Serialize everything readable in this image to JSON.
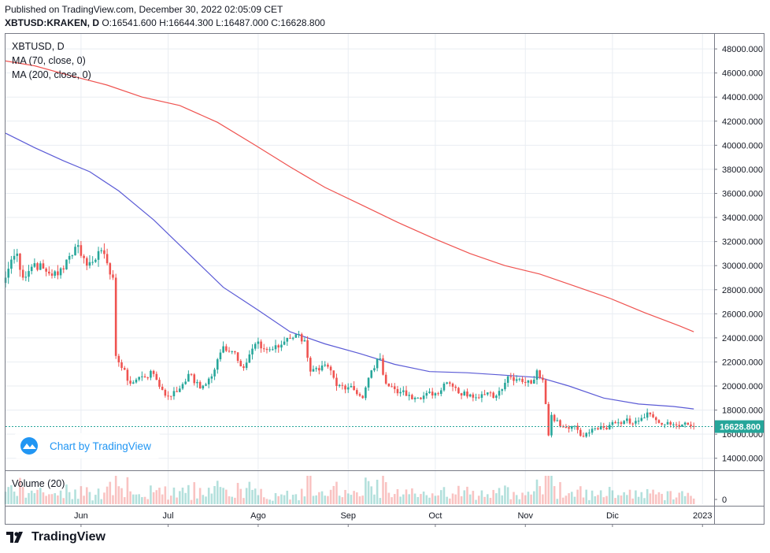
{
  "header": {
    "published": "Published on TradingView.com, December 30, 2022 02:05:09 CET",
    "symbol": "XBTUSD:KRAKEN, D",
    "ohlc": "O:16541.600 H:16644.300 L:16487.000 C:16628.800"
  },
  "legend": {
    "symbol": "XBTUSD, D",
    "ma70": "MA (70, close, 0)",
    "ma200": "MA (200, close, 0)",
    "volume": "Volume (20)"
  },
  "watermark": "Chart by TradingView",
  "footer": {
    "brand": "TradingView"
  },
  "colors": {
    "up": "#26a69a",
    "down": "#ef5350",
    "ma70": "#5b5bd6",
    "ma200": "#ef5350",
    "last_price_line": "#26a69a",
    "grid": "#e9edf2",
    "watermark": "#2196f3"
  },
  "chart_data": {
    "type": "candlestick",
    "last_price_label": "16628.800",
    "y_axis": {
      "min": 14000,
      "max": 48000,
      "step": 2000,
      "labels": [
        "48000.000",
        "46000.000",
        "44000.000",
        "42000.000",
        "40000.000",
        "38000.000",
        "36000.000",
        "34000.000",
        "32000.000",
        "30000.000",
        "28000.000",
        "26000.000",
        "24000.000",
        "22000.000",
        "20000.000",
        "18000.000",
        "16000.000",
        "14000.000"
      ]
    },
    "volume_axis": {
      "labels": [
        "0"
      ]
    },
    "x_axis": {
      "start": "2022-05-06",
      "end": "2023-01-05",
      "ticks": [
        {
          "date": "2022-06-01",
          "label": "Jun"
        },
        {
          "date": "2022-07-01",
          "label": "Jul"
        },
        {
          "date": "2022-08-01",
          "label": "Ago"
        },
        {
          "date": "2022-09-01",
          "label": "Sep"
        },
        {
          "date": "2022-10-01",
          "label": "Oct"
        },
        {
          "date": "2022-11-01",
          "label": "Nov"
        },
        {
          "date": "2022-12-01",
          "label": "Dic"
        },
        {
          "date": "2023-01-01",
          "label": "2023"
        }
      ]
    },
    "anchors": [
      {
        "date": "2022-05-06",
        "close": 29000
      },
      {
        "date": "2022-05-08",
        "close": 30500
      },
      {
        "date": "2022-05-10",
        "close": 31000
      },
      {
        "date": "2022-05-12",
        "close": 29000
      },
      {
        "date": "2022-05-16",
        "close": 30200
      },
      {
        "date": "2022-05-20",
        "close": 29500
      },
      {
        "date": "2022-05-24",
        "close": 29200
      },
      {
        "date": "2022-05-27",
        "close": 30500
      },
      {
        "date": "2022-05-31",
        "close": 31700
      },
      {
        "date": "2022-06-03",
        "close": 30000
      },
      {
        "date": "2022-06-07",
        "close": 31200
      },
      {
        "date": "2022-06-10",
        "close": 30200
      },
      {
        "date": "2022-06-12",
        "close": 29000
      },
      {
        "date": "2022-06-13",
        "close": 22500
      },
      {
        "date": "2022-06-15",
        "close": 21500
      },
      {
        "date": "2022-06-18",
        "close": 20200
      },
      {
        "date": "2022-06-22",
        "close": 20800
      },
      {
        "date": "2022-06-26",
        "close": 21000
      },
      {
        "date": "2022-06-30",
        "close": 19200
      },
      {
        "date": "2022-07-04",
        "close": 19500
      },
      {
        "date": "2022-07-08",
        "close": 21000
      },
      {
        "date": "2022-07-12",
        "close": 19800
      },
      {
        "date": "2022-07-16",
        "close": 20800
      },
      {
        "date": "2022-07-20",
        "close": 23300
      },
      {
        "date": "2022-07-24",
        "close": 22800
      },
      {
        "date": "2022-07-27",
        "close": 21500
      },
      {
        "date": "2022-07-31",
        "close": 23500
      },
      {
        "date": "2022-08-04",
        "close": 23000
      },
      {
        "date": "2022-08-08",
        "close": 23200
      },
      {
        "date": "2022-08-11",
        "close": 24000
      },
      {
        "date": "2022-08-14",
        "close": 24300
      },
      {
        "date": "2022-08-17",
        "close": 23800
      },
      {
        "date": "2022-08-19",
        "close": 21200
      },
      {
        "date": "2022-08-22",
        "close": 21300
      },
      {
        "date": "2022-08-25",
        "close": 21600
      },
      {
        "date": "2022-08-28",
        "close": 20000
      },
      {
        "date": "2022-09-02",
        "close": 20000
      },
      {
        "date": "2022-09-06",
        "close": 19000
      },
      {
        "date": "2022-09-09",
        "close": 21300
      },
      {
        "date": "2022-09-12",
        "close": 22300
      },
      {
        "date": "2022-09-14",
        "close": 20200
      },
      {
        "date": "2022-09-19",
        "close": 19500
      },
      {
        "date": "2022-09-23",
        "close": 18900
      },
      {
        "date": "2022-09-27",
        "close": 19200
      },
      {
        "date": "2022-10-01",
        "close": 19400
      },
      {
        "date": "2022-10-05",
        "close": 20300
      },
      {
        "date": "2022-10-09",
        "close": 19400
      },
      {
        "date": "2022-10-13",
        "close": 19300
      },
      {
        "date": "2022-10-18",
        "close": 19300
      },
      {
        "date": "2022-10-22",
        "close": 19200
      },
      {
        "date": "2022-10-26",
        "close": 20800
      },
      {
        "date": "2022-10-30",
        "close": 20600
      },
      {
        "date": "2022-11-03",
        "close": 20200
      },
      {
        "date": "2022-11-05",
        "close": 21300
      },
      {
        "date": "2022-11-07",
        "close": 20500
      },
      {
        "date": "2022-11-08",
        "close": 18500
      },
      {
        "date": "2022-11-09",
        "close": 15900
      },
      {
        "date": "2022-11-10",
        "close": 17600
      },
      {
        "date": "2022-11-14",
        "close": 16600
      },
      {
        "date": "2022-11-18",
        "close": 16700
      },
      {
        "date": "2022-11-21",
        "close": 15800
      },
      {
        "date": "2022-11-25",
        "close": 16500
      },
      {
        "date": "2022-11-29",
        "close": 16400
      },
      {
        "date": "2022-12-01",
        "close": 17000
      },
      {
        "date": "2022-12-05",
        "close": 17100
      },
      {
        "date": "2022-12-09",
        "close": 17100
      },
      {
        "date": "2022-12-13",
        "close": 17800
      },
      {
        "date": "2022-12-15",
        "close": 17400
      },
      {
        "date": "2022-12-18",
        "close": 16800
      },
      {
        "date": "2022-12-21",
        "close": 16800
      },
      {
        "date": "2022-12-25",
        "close": 16800
      },
      {
        "date": "2022-12-29",
        "close": 16628.8
      }
    ],
    "series": [
      {
        "name": "MA (70, close, 0)",
        "points": [
          {
            "date": "2022-05-06",
            "value": 41000
          },
          {
            "date": "2022-05-16",
            "value": 39800
          },
          {
            "date": "2022-05-26",
            "value": 38700
          },
          {
            "date": "2022-06-04",
            "value": 37800
          },
          {
            "date": "2022-06-14",
            "value": 36200
          },
          {
            "date": "2022-06-26",
            "value": 33800
          },
          {
            "date": "2022-07-08",
            "value": 31000
          },
          {
            "date": "2022-07-20",
            "value": 28200
          },
          {
            "date": "2022-08-01",
            "value": 26300
          },
          {
            "date": "2022-08-12",
            "value": 24500
          },
          {
            "date": "2022-08-24",
            "value": 23500
          },
          {
            "date": "2022-09-05",
            "value": 22700
          },
          {
            "date": "2022-09-17",
            "value": 21800
          },
          {
            "date": "2022-09-29",
            "value": 21200
          },
          {
            "date": "2022-10-12",
            "value": 21100
          },
          {
            "date": "2022-10-25",
            "value": 20900
          },
          {
            "date": "2022-11-06",
            "value": 20700
          },
          {
            "date": "2022-11-16",
            "value": 20000
          },
          {
            "date": "2022-11-28",
            "value": 19000
          },
          {
            "date": "2022-12-10",
            "value": 18500
          },
          {
            "date": "2022-12-22",
            "value": 18300
          },
          {
            "date": "2022-12-29",
            "value": 18100
          }
        ]
      },
      {
        "name": "MA (200, close, 0)",
        "points": [
          {
            "date": "2022-05-06",
            "value": 47000
          },
          {
            "date": "2022-05-16",
            "value": 46600
          },
          {
            "date": "2022-05-28",
            "value": 45800
          },
          {
            "date": "2022-06-10",
            "value": 45000
          },
          {
            "date": "2022-06-22",
            "value": 44000
          },
          {
            "date": "2022-07-05",
            "value": 43300
          },
          {
            "date": "2022-07-18",
            "value": 41900
          },
          {
            "date": "2022-07-31",
            "value": 40000
          },
          {
            "date": "2022-08-12",
            "value": 38200
          },
          {
            "date": "2022-08-24",
            "value": 36500
          },
          {
            "date": "2022-09-06",
            "value": 35000
          },
          {
            "date": "2022-09-18",
            "value": 33600
          },
          {
            "date": "2022-10-01",
            "value": 32200
          },
          {
            "date": "2022-10-13",
            "value": 31000
          },
          {
            "date": "2022-10-25",
            "value": 30000
          },
          {
            "date": "2022-11-06",
            "value": 29300
          },
          {
            "date": "2022-11-18",
            "value": 28300
          },
          {
            "date": "2022-11-30",
            "value": 27300
          },
          {
            "date": "2022-12-12",
            "value": 26100
          },
          {
            "date": "2022-12-24",
            "value": 25000
          },
          {
            "date": "2022-12-29",
            "value": 24500
          }
        ]
      }
    ]
  }
}
